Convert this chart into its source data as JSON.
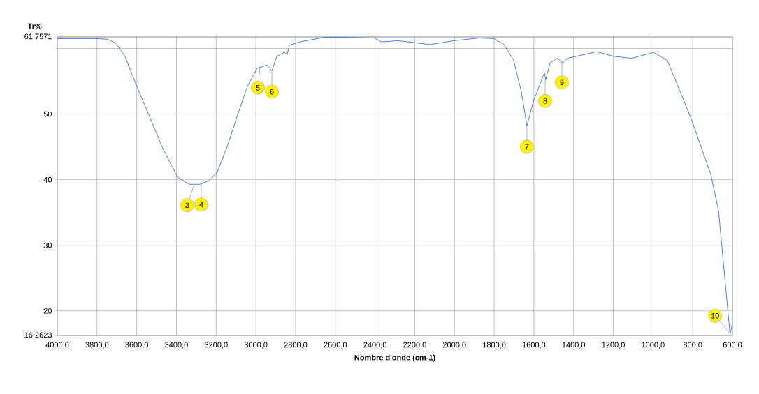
{
  "chart_data": {
    "type": "line",
    "xlabel": "Nombre d'onde (cm-1)",
    "ylabel": "Tr%",
    "x": [
      4000,
      3799,
      3747,
      3704,
      3659,
      3599,
      3535,
      3472,
      3395,
      3335,
      3282,
      3233,
      3194,
      3145,
      3095,
      3043,
      2993,
      2969,
      2944,
      2919,
      2895,
      2856,
      2842,
      2831,
      2779,
      2655,
      2553,
      2402,
      2367,
      2318,
      2290,
      2124,
      1997,
      1874,
      1800,
      1751,
      1702,
      1663,
      1635,
      1603,
      1547,
      1540,
      1519,
      1480,
      1455,
      1431,
      1283,
      1198,
      1107,
      998,
      928,
      808,
      709,
      670,
      653,
      612,
      600
    ],
    "series": [
      {
        "color": "#3a6fe0",
        "values": [
          61.5,
          61.5,
          61.4,
          60.8,
          58.8,
          54.2,
          49.6,
          45.0,
          40.4,
          39.3,
          39.3,
          39.9,
          41.2,
          45.0,
          49.6,
          54.2,
          57.0,
          57.2,
          57.5,
          56.6,
          58.8,
          59.4,
          59.1,
          60.5,
          61.0,
          61.7,
          61.7,
          61.6,
          61.0,
          61.1,
          61.2,
          60.6,
          61.2,
          61.6,
          61.5,
          60.6,
          58.2,
          53.4,
          48.2,
          51.9,
          56.3,
          55.2,
          57.8,
          58.5,
          57.8,
          58.5,
          59.5,
          58.8,
          58.5,
          59.4,
          58.2,
          49.3,
          40.8,
          35.3,
          29.7,
          16.5,
          18.1
        ]
      }
    ],
    "xlim": [
      4000,
      600
    ],
    "xticks": [
      {
        "value": 4000,
        "label": "4000,0"
      },
      {
        "value": 3800,
        "label": "3800,0"
      },
      {
        "value": 3600,
        "label": "3600,0"
      },
      {
        "value": 3400,
        "label": "3400,0"
      },
      {
        "value": 3200,
        "label": "3200,0"
      },
      {
        "value": 3000,
        "label": "3000,0"
      },
      {
        "value": 2800,
        "label": "2800,0"
      },
      {
        "value": 2600,
        "label": "2600,0"
      },
      {
        "value": 2400,
        "label": "2400,0"
      },
      {
        "value": 2200,
        "label": "2200,0"
      },
      {
        "value": 2000,
        "label": "2000,0"
      },
      {
        "value": 1800,
        "label": "1800,0"
      },
      {
        "value": 1600,
        "label": "1600,0"
      },
      {
        "value": 1400,
        "label": "1400,0"
      },
      {
        "value": 1200,
        "label": "1200,0"
      },
      {
        "value": 1000,
        "label": "1000,0"
      },
      {
        "value": 800,
        "label": "800,0"
      },
      {
        "value": 600,
        "label": "600,0"
      }
    ],
    "ylim": [
      16.2623,
      61.7571
    ],
    "yticks": [
      {
        "value": 16.2623,
        "label": "16,2623"
      },
      20,
      30,
      40,
      50,
      {
        "value": 60,
        "label": null
      },
      {
        "value": 61.7571,
        "label": "61,7571"
      }
    ],
    "grid": true,
    "marker": "none",
    "line_style": "solid",
    "annotations": [
      {
        "text": "3",
        "x": 3310,
        "y": 39.3
      },
      {
        "text": "4",
        "x": 3275,
        "y": 39.4
      },
      {
        "text": "5",
        "x": 2979,
        "y": 57.2
      },
      {
        "text": "6",
        "x": 2919,
        "y": 56.6
      },
      {
        "text": "7",
        "x": 1635,
        "y": 48.2
      },
      {
        "text": "8",
        "x": 1543,
        "y": 55.2
      },
      {
        "text": "9",
        "x": 1459,
        "y": 58.0
      },
      {
        "text": "10",
        "x": 610,
        "y": 16.5
      }
    ]
  }
}
